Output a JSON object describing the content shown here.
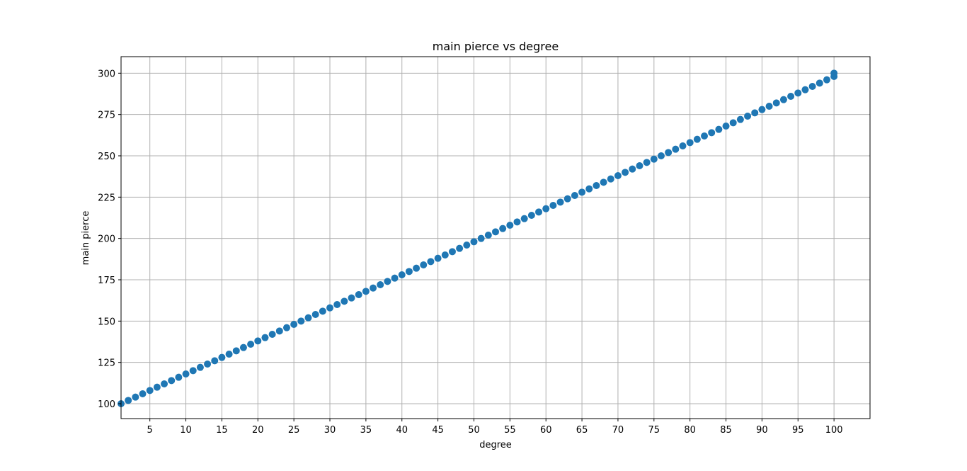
{
  "chart_data": {
    "type": "scatter",
    "title": "main pierce vs degree",
    "xlabel": "degree",
    "ylabel": "main pierce",
    "xlim": [
      1,
      105
    ],
    "ylim": [
      91,
      310
    ],
    "grid": true,
    "x_ticks": [
      5,
      10,
      15,
      20,
      25,
      30,
      35,
      40,
      45,
      50,
      55,
      60,
      65,
      70,
      75,
      80,
      85,
      90,
      95,
      100
    ],
    "y_ticks": [
      100,
      125,
      150,
      175,
      200,
      225,
      250,
      275,
      300
    ],
    "marker_color": "#1f77b4",
    "series": [
      {
        "x_start": 1,
        "x_end": 100,
        "step": 1,
        "relation": "y = 2*x + 98",
        "x": [
          1,
          2,
          3,
          4,
          5,
          6,
          7,
          8,
          9,
          10,
          11,
          12,
          13,
          14,
          15,
          16,
          17,
          18,
          19,
          20,
          21,
          22,
          23,
          24,
          25,
          26,
          27,
          28,
          29,
          30,
          31,
          32,
          33,
          34,
          35,
          36,
          37,
          38,
          39,
          40,
          41,
          42,
          43,
          44,
          45,
          46,
          47,
          48,
          49,
          50,
          51,
          52,
          53,
          54,
          55,
          56,
          57,
          58,
          59,
          60,
          61,
          62,
          63,
          64,
          65,
          66,
          67,
          68,
          69,
          70,
          71,
          72,
          73,
          74,
          75,
          76,
          77,
          78,
          79,
          80,
          81,
          82,
          83,
          84,
          85,
          86,
          87,
          88,
          89,
          90,
          91,
          92,
          93,
          94,
          95,
          96,
          97,
          98,
          99,
          100
        ],
        "y": [
          100,
          102,
          104,
          106,
          108,
          110,
          112,
          114,
          116,
          118,
          120,
          122,
          124,
          126,
          128,
          130,
          132,
          134,
          136,
          138,
          140,
          142,
          144,
          146,
          148,
          150,
          152,
          154,
          156,
          158,
          160,
          162,
          164,
          166,
          168,
          170,
          172,
          174,
          176,
          178,
          180,
          182,
          184,
          186,
          188,
          190,
          192,
          194,
          196,
          198,
          200,
          202,
          204,
          206,
          208,
          210,
          212,
          214,
          216,
          218,
          220,
          222,
          224,
          226,
          228,
          230,
          232,
          234,
          236,
          238,
          240,
          242,
          244,
          246,
          248,
          250,
          252,
          254,
          256,
          258,
          260,
          262,
          264,
          266,
          268,
          270,
          272,
          274,
          276,
          278,
          280,
          282,
          284,
          286,
          288,
          290,
          292,
          294,
          296,
          298
        ]
      }
    ]
  }
}
